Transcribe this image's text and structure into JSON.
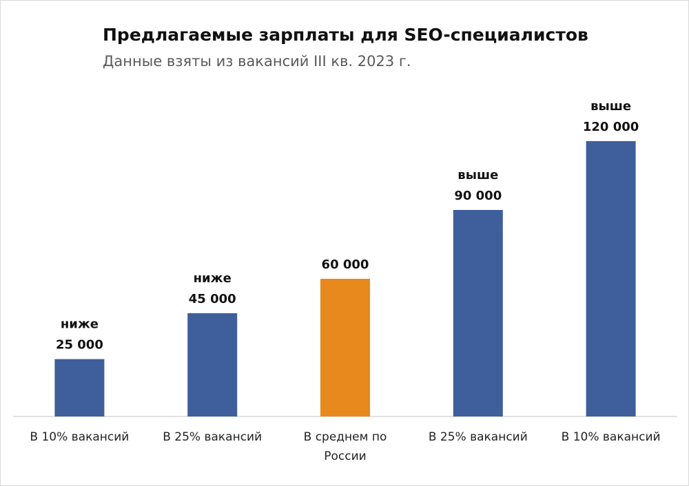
{
  "chart_data": {
    "type": "bar",
    "title": "Предлагаемые зарплаты для SEO-специалистов",
    "subtitle": "Данные взяты из вакансий III кв. 2023 г.",
    "categories": [
      "В 10% вакансий",
      "В 25% вакансий",
      "В среднем по России",
      "В 25% вакансий",
      "В 10% вакансий"
    ],
    "values": [
      25000,
      45000,
      60000,
      90000,
      120000
    ],
    "value_labels": [
      "25 000",
      "45 000",
      "60 000",
      "90 000",
      "120 000"
    ],
    "value_label_notes": [
      "ниже",
      "ниже",
      null,
      "выше",
      "выше"
    ],
    "colors": [
      "#3f5e9c",
      "#3f5e9c",
      "#e8891e",
      "#3f5e9c",
      "#3f5e9c"
    ],
    "ylim": [
      0,
      120000
    ]
  }
}
